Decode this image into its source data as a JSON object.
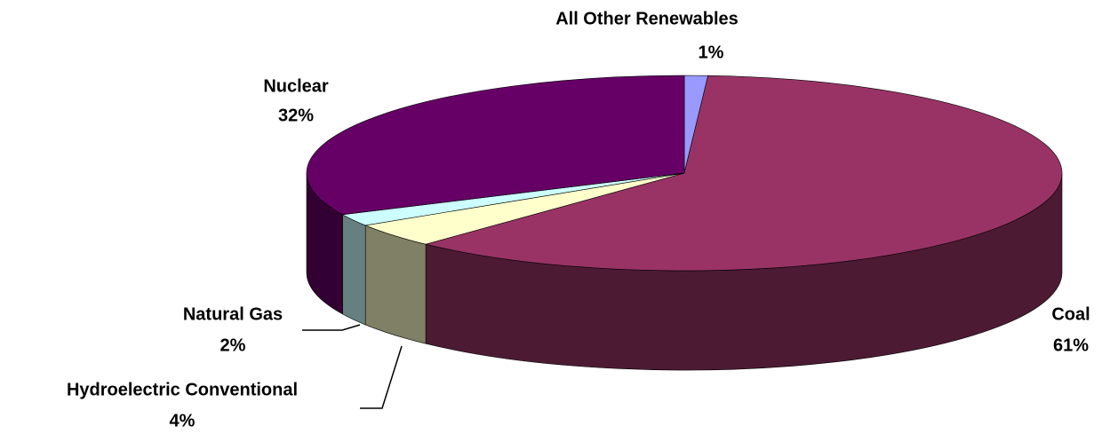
{
  "chart_data": {
    "type": "pie3d",
    "categories": [
      "All Other Renewables",
      "Coal",
      "Hydroelectric Conventional",
      "Natural Gas",
      "Nuclear"
    ],
    "values": [
      1,
      61,
      4,
      2,
      32
    ],
    "value_labels": [
      "1%",
      "61%",
      "4%",
      "2%",
      "32%"
    ],
    "colors": [
      "#9999ff",
      "#993366",
      "#ffffcc",
      "#ccffff",
      "#660066"
    ],
    "side_colors": [
      "#4d4d80",
      "#4d1a33",
      "#808066",
      "#668080",
      "#330033"
    ]
  }
}
